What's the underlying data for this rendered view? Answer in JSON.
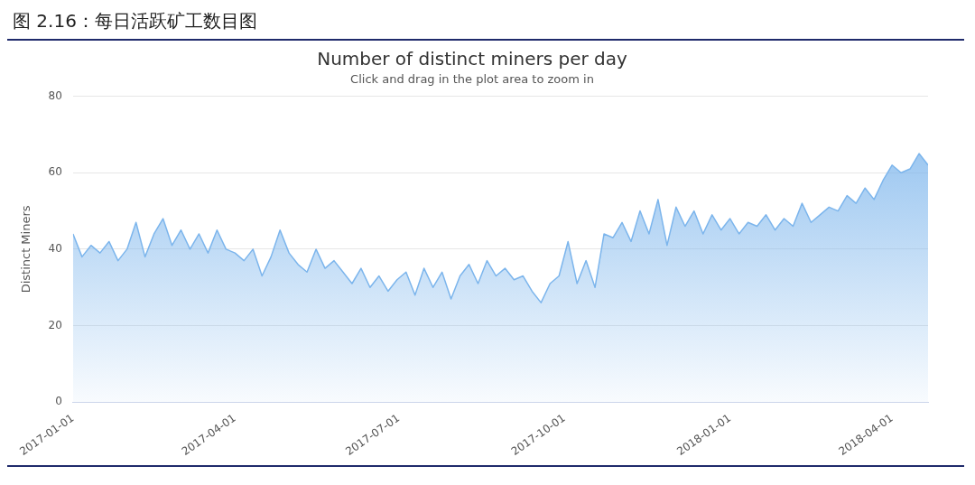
{
  "chart_data": {
    "type": "area",
    "title": "Number of distinct miners per day",
    "subtitle": "Click and drag in the plot area to zoom in",
    "annotations": [
      "图 2.16：每日活跃矿工数目图"
    ],
    "ylabel": "Distinct Miners",
    "x": [
      "2017-01-01",
      "2017-01-06",
      "2017-01-11",
      "2017-01-16",
      "2017-01-21",
      "2017-01-26",
      "2017-01-31",
      "2017-02-05",
      "2017-02-10",
      "2017-02-15",
      "2017-02-20",
      "2017-02-25",
      "2017-03-02",
      "2017-03-07",
      "2017-03-12",
      "2017-03-17",
      "2017-03-22",
      "2017-03-27",
      "2017-04-01",
      "2017-04-06",
      "2017-04-11",
      "2017-04-16",
      "2017-04-21",
      "2017-04-26",
      "2017-05-01",
      "2017-05-06",
      "2017-05-11",
      "2017-05-16",
      "2017-05-21",
      "2017-05-26",
      "2017-05-31",
      "2017-06-05",
      "2017-06-10",
      "2017-06-15",
      "2017-06-20",
      "2017-06-25",
      "2017-06-30",
      "2017-07-05",
      "2017-07-10",
      "2017-07-15",
      "2017-07-20",
      "2017-07-25",
      "2017-07-30",
      "2017-08-04",
      "2017-08-09",
      "2017-08-14",
      "2017-08-19",
      "2017-08-24",
      "2017-08-29",
      "2017-09-03",
      "2017-09-08",
      "2017-09-13",
      "2017-09-18",
      "2017-09-23",
      "2017-09-28",
      "2017-10-03",
      "2017-10-08",
      "2017-10-13",
      "2017-10-18",
      "2017-10-23",
      "2017-10-28",
      "2017-11-02",
      "2017-11-07",
      "2017-11-12",
      "2017-11-17",
      "2017-11-22",
      "2017-11-27",
      "2017-12-02",
      "2017-12-07",
      "2017-12-12",
      "2017-12-17",
      "2017-12-22",
      "2017-12-27",
      "2018-01-01",
      "2018-01-06",
      "2018-01-11",
      "2018-01-16",
      "2018-01-21",
      "2018-01-26",
      "2018-01-31",
      "2018-02-05",
      "2018-02-10",
      "2018-02-15",
      "2018-02-20",
      "2018-02-25",
      "2018-03-02",
      "2018-03-07",
      "2018-03-12",
      "2018-03-17",
      "2018-03-22",
      "2018-03-27",
      "2018-04-01",
      "2018-04-06",
      "2018-04-11",
      "2018-04-16",
      "2018-04-21"
    ],
    "series": [
      {
        "color": "#7cb5ec",
        "values": [
          44,
          38,
          41,
          39,
          42,
          37,
          40,
          47,
          38,
          44,
          48,
          41,
          45,
          40,
          44,
          39,
          45,
          40,
          39,
          37,
          40,
          33,
          38,
          45,
          39,
          36,
          34,
          40,
          35,
          37,
          34,
          31,
          35,
          30,
          33,
          29,
          32,
          34,
          28,
          35,
          30,
          34,
          27,
          33,
          36,
          31,
          37,
          33,
          35,
          32,
          33,
          29,
          26,
          31,
          33,
          42,
          31,
          37,
          30,
          44,
          43,
          47,
          42,
          50,
          44,
          53,
          41,
          51,
          46,
          50,
          44,
          49,
          45,
          48,
          44,
          47,
          46,
          49,
          45,
          48,
          46,
          52,
          47,
          49,
          51,
          50,
          54,
          52,
          56,
          53,
          58,
          62,
          60,
          61,
          65,
          62
        ]
      }
    ],
    "xlim": [
      "2017-01-01",
      "2018-04-21"
    ],
    "xticks": [
      "2017-01-01",
      "2017-04-01",
      "2017-07-01",
      "2017-10-01",
      "2018-01-01",
      "2018-04-01"
    ],
    "ylim": [
      0,
      80
    ],
    "yticks": [
      0,
      20,
      40,
      60,
      80
    ],
    "grid": "y",
    "legend": false,
    "marker": "none",
    "line_style": "solid"
  }
}
